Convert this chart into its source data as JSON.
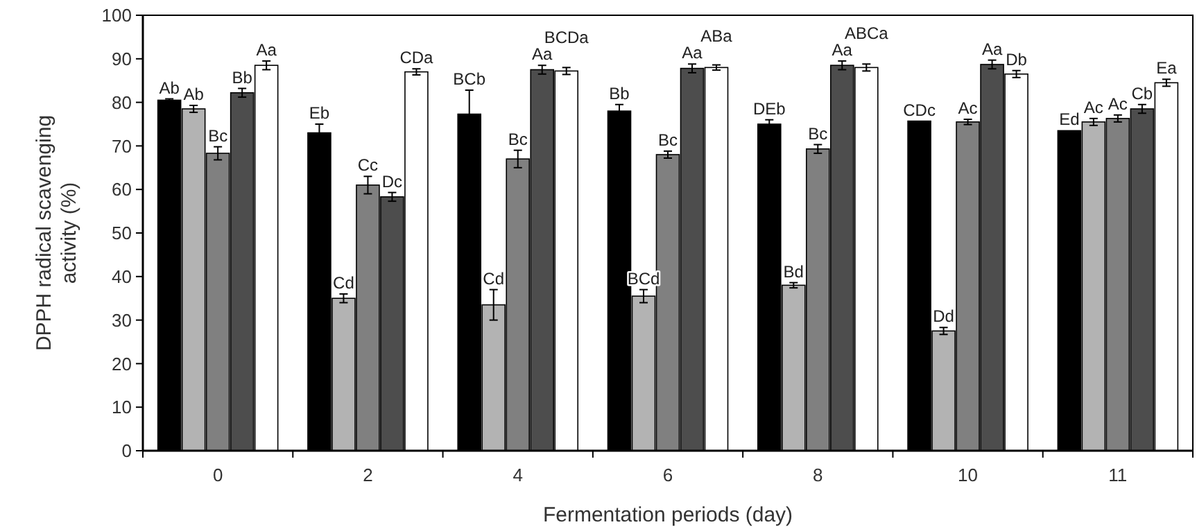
{
  "chart_data": {
    "type": "bar",
    "xlabel": "Fermentation periods (day)",
    "ylabel": "DPPH radical scavenging activity (%)",
    "categories": [
      "0",
      "2",
      "4",
      "6",
      "8",
      "10",
      "11"
    ],
    "ylim": [
      0,
      100
    ],
    "yticks": [
      0,
      10,
      20,
      30,
      40,
      50,
      60,
      70,
      80,
      90,
      100
    ],
    "grid": false,
    "series": [
      {
        "color": "#000000",
        "values": [
          80.5,
          73,
          77.3,
          78,
          75,
          75.7,
          73.5
        ],
        "errors": [
          0.3,
          2,
          5.5,
          1.5,
          1,
          null,
          null
        ],
        "value_labels": [
          "Ab",
          "Eb",
          "BCb",
          "Bb",
          "DEb",
          "CDc",
          "Ed"
        ]
      },
      {
        "color": "#b3b3b3",
        "values": [
          78.5,
          35,
          33.5,
          35.5,
          38,
          27.5,
          75.5
        ],
        "errors": [
          0.8,
          1,
          3.5,
          1.5,
          0.6,
          0.8,
          0.8
        ],
        "value_labels": [
          "Ab",
          "Cd",
          "Cd",
          "BCd",
          "Bd",
          "Dd",
          "Ac"
        ]
      },
      {
        "color": "#808080",
        "values": [
          68.3,
          61,
          67,
          68,
          69.3,
          75.5,
          76.3
        ],
        "errors": [
          1.5,
          2,
          2,
          0.8,
          1,
          0.6,
          0.8
        ],
        "value_labels": [
          "Bc",
          "Cc",
          "Bc",
          "Bc",
          "Bc",
          "Ac",
          "Ac"
        ]
      },
      {
        "color": "#4d4d4d",
        "values": [
          82.2,
          58.3,
          87.5,
          87.8,
          88.5,
          88.7,
          78.5
        ],
        "errors": [
          1,
          1,
          1,
          1,
          1,
          1,
          1
        ],
        "value_labels": [
          "Bb",
          "Dc",
          "Aa",
          "Aa",
          "Aa",
          "Aa",
          "Cb"
        ]
      },
      {
        "color": "#ffffff",
        "values": [
          88.5,
          87,
          87.2,
          88,
          88,
          86.5,
          84.5
        ],
        "errors": [
          1,
          0.7,
          0.8,
          0.6,
          0.8,
          0.8,
          0.8
        ],
        "value_labels": [
          "Aa",
          "CDa",
          "BCDa",
          "ABa",
          "ABCa",
          "Db",
          "Ea"
        ]
      }
    ]
  }
}
